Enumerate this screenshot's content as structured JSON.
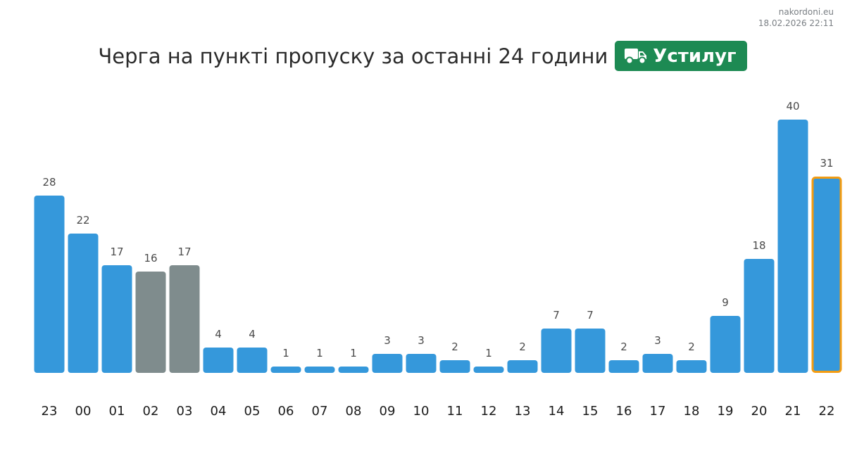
{
  "source": {
    "site": "nakordoni.eu",
    "timestamp": "18.02.2026 22:11"
  },
  "header": {
    "title": "Черга на пункті пропуску за останні 24 години",
    "checkpoint_name": "Устилуг",
    "checkpoint_icon": "truck-icon",
    "badge_color": "#1d8a53"
  },
  "colors": {
    "bar": "#3598db",
    "bar_muted": "#7f8c8d",
    "current_outline": "#f39c12"
  },
  "chart_data": {
    "type": "bar",
    "categories": [
      "23",
      "00",
      "01",
      "02",
      "03",
      "04",
      "05",
      "06",
      "07",
      "08",
      "09",
      "10",
      "11",
      "12",
      "13",
      "14",
      "15",
      "16",
      "17",
      "18",
      "19",
      "20",
      "21",
      "22"
    ],
    "values": [
      28,
      22,
      17,
      16,
      17,
      4,
      4,
      1,
      1,
      1,
      3,
      3,
      2,
      1,
      2,
      7,
      7,
      2,
      3,
      2,
      9,
      18,
      40,
      31
    ],
    "muted_categories": [
      "02",
      "03"
    ],
    "highlighted_category": "22",
    "title": "",
    "xlabel": "",
    "ylabel": "",
    "ylim": [
      0,
      40
    ],
    "grid": false,
    "legend": "none"
  }
}
